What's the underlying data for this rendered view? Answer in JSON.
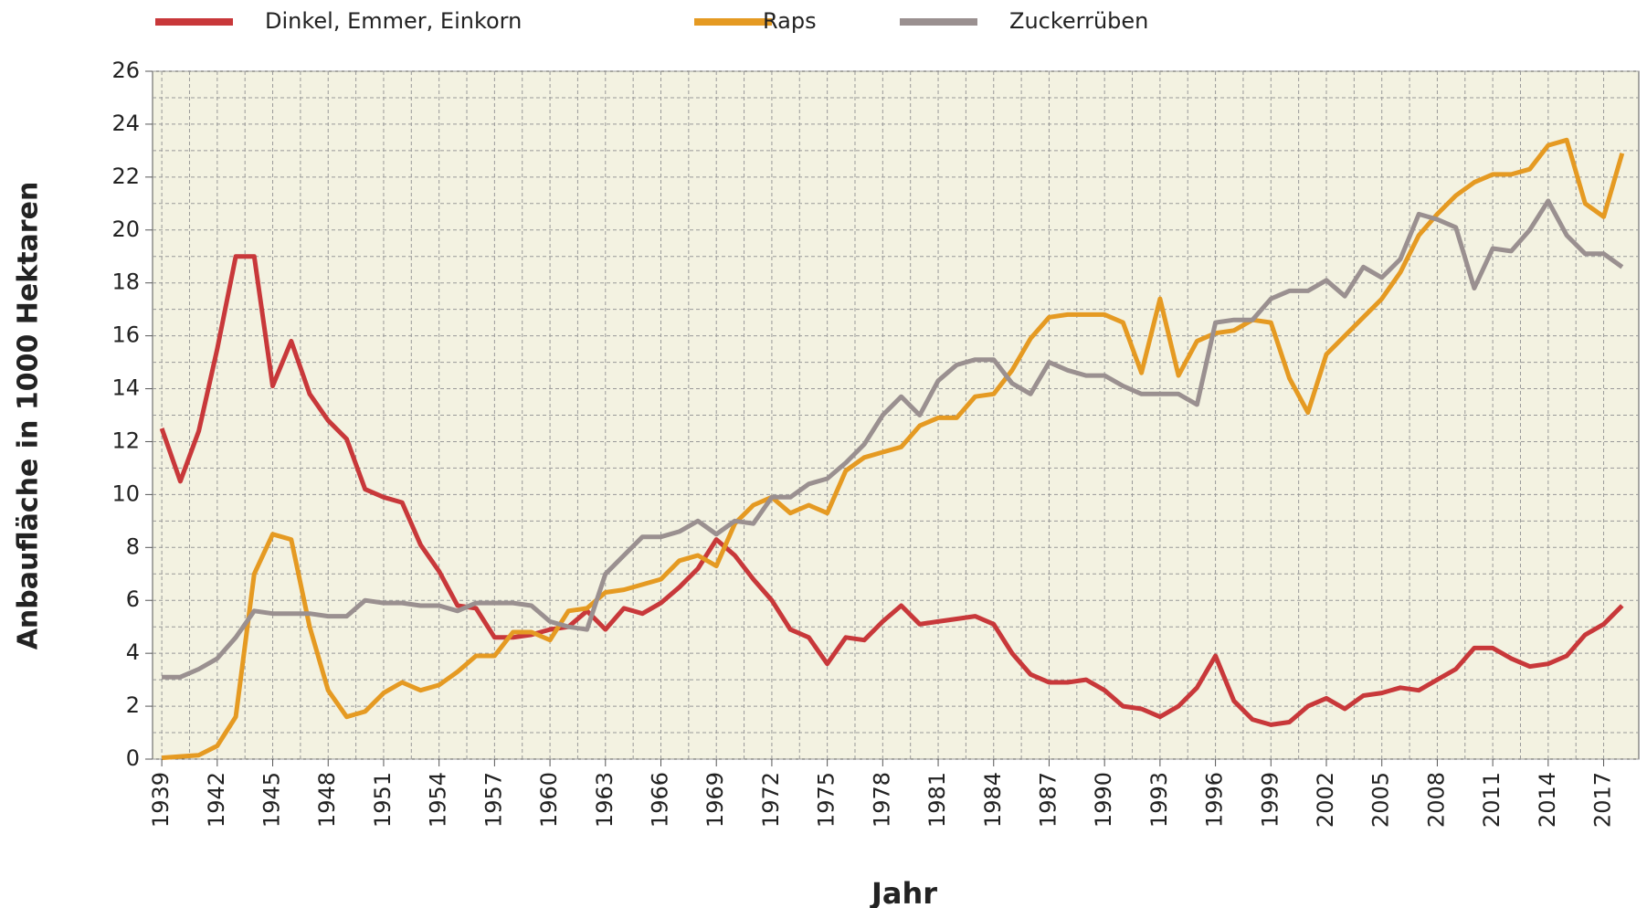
{
  "chart_data": {
    "type": "line",
    "xlabel": "Jahr",
    "ylabel": "Anbaufläche in 1000 Hektaren",
    "x": [
      1939,
      1940,
      1941,
      1942,
      1943,
      1944,
      1945,
      1946,
      1947,
      1948,
      1949,
      1950,
      1951,
      1952,
      1953,
      1954,
      1955,
      1956,
      1957,
      1958,
      1959,
      1960,
      1961,
      1962,
      1963,
      1964,
      1965,
      1966,
      1967,
      1968,
      1969,
      1970,
      1971,
      1972,
      1973,
      1974,
      1975,
      1976,
      1977,
      1978,
      1979,
      1980,
      1981,
      1982,
      1983,
      1984,
      1985,
      1986,
      1987,
      1988,
      1989,
      1990,
      1991,
      1992,
      1993,
      1994,
      1995,
      1996,
      1997,
      1998,
      1999,
      2000,
      2001,
      2002,
      2003,
      2004,
      2005,
      2006,
      2007,
      2008,
      2009,
      2010,
      2011,
      2012,
      2013,
      2014,
      2015,
      2016,
      2017,
      2018
    ],
    "series": [
      {
        "name": "Dinkel, Emmer, Einkorn",
        "color": "#c8383a",
        "values": [
          12.5,
          10.5,
          12.4,
          15.5,
          19,
          19,
          14.1,
          15.8,
          13.8,
          12.8,
          12.1,
          10.2,
          9.9,
          9.7,
          8.1,
          7.1,
          5.8,
          5.7,
          4.6,
          4.6,
          4.7,
          4.9,
          5.0,
          5.6,
          4.9,
          5.7,
          5.5,
          5.9,
          6.5,
          7.2,
          8.3,
          7.7,
          6.8,
          6.0,
          4.9,
          4.6,
          3.6,
          4.6,
          4.5,
          5.2,
          5.8,
          5.1,
          5.2,
          5.3,
          5.4,
          5.1,
          4.0,
          3.2,
          2.9,
          2.9,
          3.0,
          2.6,
          2.0,
          1.9,
          1.6,
          2.0,
          2.7,
          3.9,
          2.2,
          1.5,
          1.3,
          1.4,
          2.0,
          2.3,
          1.9,
          2.4,
          2.5,
          2.7,
          2.6,
          3.0,
          3.4,
          4.2,
          4.2,
          3.8,
          3.5,
          3.6,
          3.9,
          4.7,
          5.1,
          5.8
        ]
      },
      {
        "name": "Raps",
        "color": "#e59a22",
        "values": [
          0.05,
          0.1,
          0.15,
          0.5,
          1.6,
          7.0,
          8.5,
          8.3,
          5.0,
          2.6,
          1.6,
          1.8,
          2.5,
          2.9,
          2.6,
          2.8,
          3.3,
          3.9,
          3.9,
          4.8,
          4.8,
          4.5,
          5.6,
          5.7,
          6.3,
          6.4,
          6.6,
          6.8,
          7.5,
          7.7,
          7.3,
          8.9,
          9.6,
          9.9,
          9.3,
          9.6,
          9.3,
          10.9,
          11.4,
          11.6,
          11.8,
          12.6,
          12.9,
          12.9,
          13.7,
          13.8,
          14.7,
          15.9,
          16.7,
          16.8,
          16.8,
          16.8,
          16.5,
          14.6,
          17.4,
          14.5,
          15.8,
          16.1,
          16.2,
          16.6,
          16.5,
          14.4,
          13.1,
          15.3,
          16.0,
          16.7,
          17.4,
          18.4,
          19.8,
          20.6,
          21.3,
          21.8,
          22.1,
          22.1,
          22.3,
          23.2,
          23.4,
          21.0,
          20.5,
          22.9
        ]
      },
      {
        "name": "Zuckerrüben",
        "color": "#9a9090",
        "values": [
          3.1,
          3.1,
          3.4,
          3.8,
          4.6,
          5.6,
          5.5,
          5.5,
          5.5,
          5.4,
          5.4,
          6.0,
          5.9,
          5.9,
          5.8,
          5.8,
          5.6,
          5.9,
          5.9,
          5.9,
          5.8,
          5.2,
          5.0,
          4.9,
          7.0,
          7.7,
          8.4,
          8.4,
          8.6,
          9.0,
          8.5,
          9.0,
          8.9,
          9.9,
          9.9,
          10.4,
          10.6,
          11.2,
          11.9,
          13.0,
          13.7,
          13.0,
          14.3,
          14.9,
          15.1,
          15.1,
          14.2,
          13.8,
          15.0,
          14.7,
          14.5,
          14.5,
          14.1,
          13.8,
          13.8,
          13.8,
          13.4,
          16.5,
          16.6,
          16.6,
          17.4,
          17.7,
          17.7,
          18.1,
          17.5,
          18.6,
          18.2,
          18.9,
          20.6,
          20.4,
          20.1,
          17.8,
          19.3,
          19.2,
          20.0,
          21.1,
          19.8,
          19.1,
          19.1,
          18.6
        ]
      }
    ],
    "xlim": [
      1938.5,
      2018.9
    ],
    "xticks": [
      1939,
      1942,
      1945,
      1948,
      1951,
      1954,
      1957,
      1960,
      1963,
      1966,
      1969,
      1972,
      1975,
      1978,
      1981,
      1984,
      1987,
      1990,
      1993,
      1996,
      1999,
      2002,
      2005,
      2008,
      2011,
      2014,
      2017
    ],
    "ylim": [
      0,
      26
    ],
    "yticks": [
      0,
      2,
      4,
      6,
      8,
      10,
      12,
      14,
      16,
      18,
      20,
      22,
      24,
      26
    ],
    "grid": true
  }
}
